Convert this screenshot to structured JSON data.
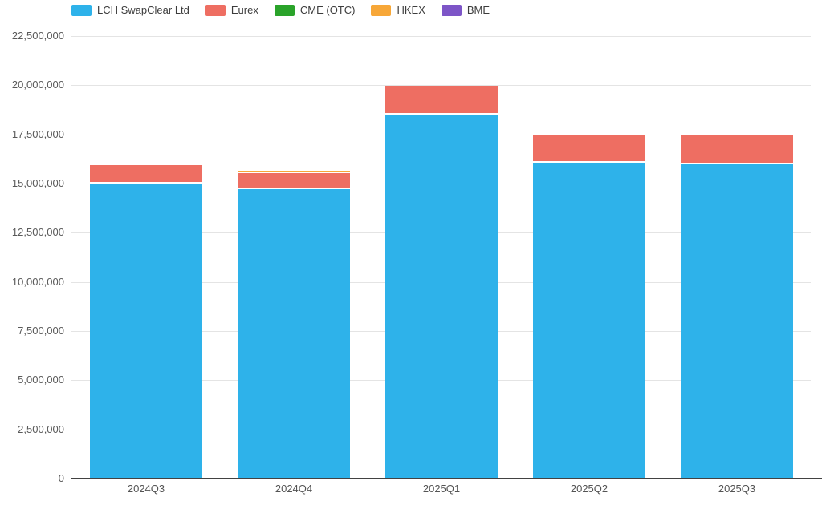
{
  "chart_data": {
    "type": "bar",
    "stacked": true,
    "title": "",
    "xlabel": "",
    "ylabel": "",
    "categories": [
      "2024Q3",
      "2024Q4",
      "2025Q1",
      "2025Q2",
      "2025Q3"
    ],
    "series": [
      {
        "name": "LCH SwapClear Ltd",
        "color": "#2eb2ea",
        "values": [
          15100000,
          14800000,
          18600000,
          16150000,
          16050000
        ]
      },
      {
        "name": "Eurex",
        "color": "#ee6e62",
        "values": [
          850000,
          820000,
          1400000,
          1350000,
          1400000
        ]
      },
      {
        "name": "CME (OTC)",
        "color": "#2aa32a",
        "values": [
          0,
          0,
          0,
          0,
          0
        ]
      },
      {
        "name": "HKEX",
        "color": "#f7a738",
        "values": [
          0,
          60000,
          0,
          0,
          0
        ]
      },
      {
        "name": "BME",
        "color": "#7d55c7",
        "values": [
          0,
          0,
          0,
          0,
          0
        ]
      }
    ],
    "totals": [
      15950000,
      15680000,
      20000000,
      17500000,
      17450000
    ],
    "ylim": [
      0,
      22500000
    ],
    "ytick_interval": 2500000,
    "yticks": [
      {
        "value": 0,
        "label": "0"
      },
      {
        "value": 2500000,
        "label": "2,500,000"
      },
      {
        "value": 5000000,
        "label": "5,000,000"
      },
      {
        "value": 7500000,
        "label": "7,500,000"
      },
      {
        "value": 10000000,
        "label": "10,000,000"
      },
      {
        "value": 12500000,
        "label": "12,500,000"
      },
      {
        "value": 15000000,
        "label": "15,000,000"
      },
      {
        "value": 17500000,
        "label": "17,500,000"
      },
      {
        "value": 20000000,
        "label": "20,000,000"
      },
      {
        "value": 22500000,
        "label": "22,500,000"
      }
    ],
    "grid": "horizontal",
    "legend_position": "top-left",
    "colors": {
      "gridline": "#e4e4e4",
      "axis_line": "#424242",
      "tick_text": "#595959",
      "legend_text": "#3c3c3c",
      "background": "#ffffff"
    }
  }
}
